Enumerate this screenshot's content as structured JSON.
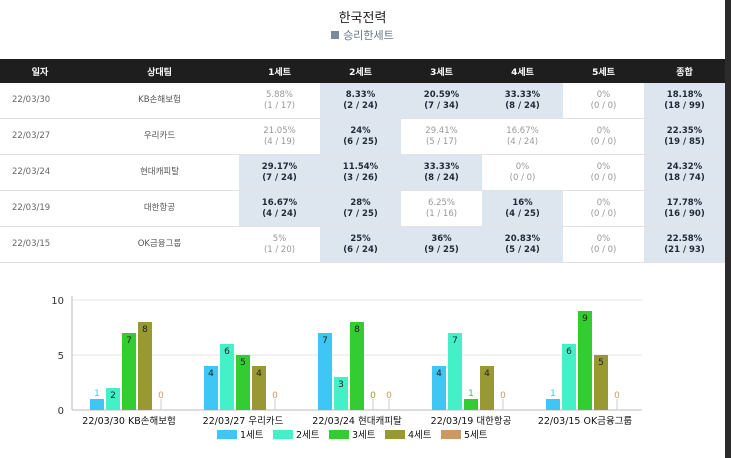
{
  "title": "한국전력",
  "subtitle": "승리한세트",
  "table": {
    "headers": [
      "일자",
      "상대팀",
      "1세트",
      "2세트",
      "3세트",
      "4세트",
      "5세트",
      "종합"
    ],
    "rows": [
      {
        "date": "22/03/30",
        "opponent": "KB손해보험",
        "sets": [
          [
            "5.88%",
            "(1 / 17)",
            false
          ],
          [
            "8.33%",
            "(2 / 24)",
            true
          ],
          [
            "20.59%",
            "(7 / 34)",
            true
          ],
          [
            "33.33%",
            "(8 / 24)",
            true
          ],
          [
            "0%",
            "(0 / 0)",
            false
          ]
        ],
        "total": [
          "18.18%",
          "(18 / 99)"
        ]
      },
      {
        "date": "22/03/27",
        "opponent": "우리카드",
        "sets": [
          [
            "21.05%",
            "(4 / 19)",
            false
          ],
          [
            "24%",
            "(6 / 25)",
            true
          ],
          [
            "29.41%",
            "(5 / 17)",
            false
          ],
          [
            "16.67%",
            "(4 / 24)",
            false
          ],
          [
            "0%",
            "(0 / 0)",
            false
          ]
        ],
        "total": [
          "22.35%",
          "(19 / 85)"
        ]
      },
      {
        "date": "22/03/24",
        "opponent": "현대캐피탈",
        "sets": [
          [
            "29.17%",
            "(7 / 24)",
            true
          ],
          [
            "11.54%",
            "(3 / 26)",
            true
          ],
          [
            "33.33%",
            "(8 / 24)",
            true
          ],
          [
            "0%",
            "(0 / 0)",
            false
          ],
          [
            "0%",
            "(0 / 0)",
            false
          ]
        ],
        "total": [
          "24.32%",
          "(18 / 74)"
        ]
      },
      {
        "date": "22/03/19",
        "opponent": "대한항공",
        "sets": [
          [
            "16.67%",
            "(4 / 24)",
            true
          ],
          [
            "28%",
            "(7 / 25)",
            true
          ],
          [
            "6.25%",
            "(1 / 16)",
            false
          ],
          [
            "16%",
            "(4 / 25)",
            true
          ],
          [
            "0%",
            "(0 / 0)",
            false
          ]
        ],
        "total": [
          "17.78%",
          "(16 / 90)"
        ]
      },
      {
        "date": "22/03/15",
        "opponent": "OK금융그룹",
        "sets": [
          [
            "5%",
            "(1 / 20)",
            false
          ],
          [
            "25%",
            "(6 / 24)",
            true
          ],
          [
            "36%",
            "(9 / 25)",
            true
          ],
          [
            "20.83%",
            "(5 / 24)",
            true
          ],
          [
            "0%",
            "(0 / 0)",
            false
          ]
        ],
        "total": [
          "22.58%",
          "(21 / 93)"
        ]
      }
    ]
  },
  "chart_data": {
    "type": "bar",
    "categories": [
      "22/03/30 KB손해보험",
      "22/03/27 우리카드",
      "22/03/24 현대캐피탈",
      "22/03/19 대한항공",
      "22/03/15 OK금융그룹"
    ],
    "series": [
      {
        "name": "1세트",
        "color": "#3ec6f5",
        "values": [
          1,
          4,
          7,
          4,
          1
        ]
      },
      {
        "name": "2세트",
        "color": "#44f0c8",
        "values": [
          2,
          6,
          3,
          7,
          6
        ]
      },
      {
        "name": "3세트",
        "color": "#33cc33",
        "values": [
          7,
          5,
          8,
          1,
          9
        ]
      },
      {
        "name": "4세트",
        "color": "#999933",
        "values": [
          8,
          4,
          0,
          4,
          5
        ]
      },
      {
        "name": "5세트",
        "color": "#cc9966",
        "values": [
          0,
          0,
          0,
          0,
          0
        ]
      }
    ],
    "yticks": [
      0,
      5,
      10
    ],
    "ylim": [
      0,
      10
    ],
    "legend_position": "bottom"
  }
}
